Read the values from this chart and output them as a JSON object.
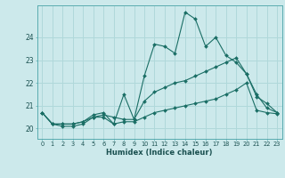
{
  "xlabel": "Humidex (Indice chaleur)",
  "bg_color": "#cce9eb",
  "grid_color": "#b0d8da",
  "line_color": "#1a6e65",
  "x_ticks": [
    0,
    1,
    2,
    3,
    4,
    5,
    6,
    7,
    8,
    9,
    10,
    11,
    12,
    13,
    14,
    15,
    16,
    17,
    18,
    19,
    20,
    21,
    22,
    23
  ],
  "y_ticks": [
    20,
    21,
    22,
    23,
    24
  ],
  "ylim": [
    19.55,
    25.4
  ],
  "xlim": [
    -0.5,
    23.5
  ],
  "series": [
    [
      20.7,
      20.2,
      20.1,
      20.1,
      20.2,
      20.5,
      20.5,
      20.2,
      20.3,
      20.3,
      20.5,
      20.7,
      20.8,
      20.9,
      21.0,
      21.1,
      21.2,
      21.3,
      21.5,
      21.7,
      22.0,
      20.8,
      20.7,
      20.65
    ],
    [
      20.7,
      20.2,
      20.2,
      20.2,
      20.3,
      20.5,
      20.6,
      20.5,
      20.4,
      20.4,
      21.2,
      21.6,
      21.8,
      22.0,
      22.1,
      22.3,
      22.5,
      22.7,
      22.9,
      23.1,
      22.4,
      21.4,
      21.1,
      20.7
    ],
    [
      20.7,
      20.2,
      20.2,
      20.2,
      20.3,
      20.6,
      20.7,
      20.2,
      21.5,
      20.4,
      22.3,
      23.7,
      23.6,
      23.3,
      25.1,
      24.8,
      23.6,
      24.0,
      23.2,
      22.9,
      22.4,
      21.5,
      20.9,
      20.7
    ]
  ]
}
